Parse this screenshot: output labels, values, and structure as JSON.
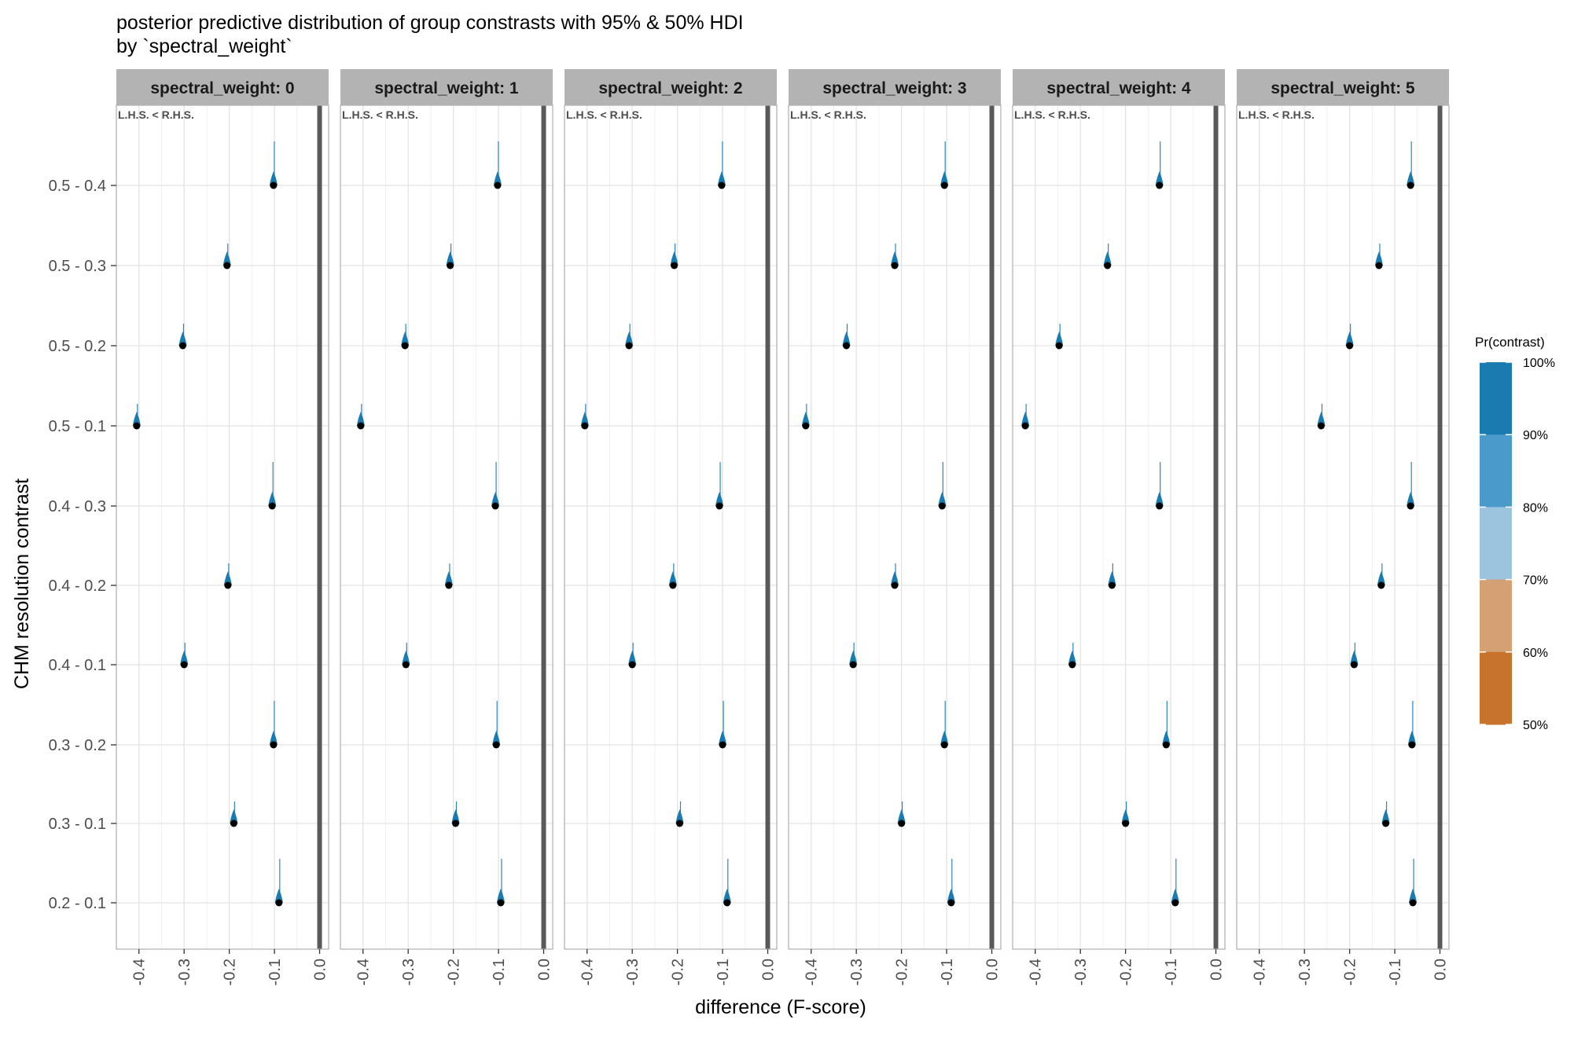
{
  "title_line1": "posterior predictive distribution of group constrasts with 95% & 50% HDI",
  "title_line2": "by `spectral_weight`",
  "chart_data": {
    "type": "interval",
    "xlabel": "difference (F-score)",
    "ylabel": "CHM resolution contrast",
    "xlim": [
      -0.45,
      0.02
    ],
    "x_ticks": [
      -0.4,
      -0.3,
      -0.2,
      -0.1,
      0.0
    ],
    "x_tick_labels": [
      "-0.4",
      "-0.3",
      "-0.2",
      "-0.1",
      "0.0"
    ],
    "reference_line": 0.0,
    "grid": true,
    "annotation": "L.H.S. < R.H.S.",
    "categories": [
      "0.5 - 0.4",
      "0.5 - 0.3",
      "0.5 - 0.2",
      "0.5 - 0.1",
      "0.4 - 0.3",
      "0.4 - 0.2",
      "0.4 - 0.1",
      "0.3 - 0.2",
      "0.3 - 0.1",
      "0.2 - 0.1"
    ],
    "facets": [
      {
        "label": "spectral_weight: 0",
        "medians": [
          -0.102,
          -0.205,
          -0.303,
          -0.405,
          -0.105,
          -0.203,
          -0.3,
          -0.102,
          -0.19,
          -0.09
        ]
      },
      {
        "label": "spectral_weight: 1",
        "medians": [
          -0.102,
          -0.207,
          -0.307,
          -0.405,
          -0.107,
          -0.21,
          -0.305,
          -0.105,
          -0.195,
          -0.095
        ]
      },
      {
        "label": "spectral_weight: 2",
        "medians": [
          -0.102,
          -0.207,
          -0.307,
          -0.405,
          -0.107,
          -0.21,
          -0.3,
          -0.1,
          -0.195,
          -0.09
        ]
      },
      {
        "label": "spectral_weight: 3",
        "medians": [
          -0.105,
          -0.215,
          -0.322,
          -0.412,
          -0.11,
          -0.215,
          -0.307,
          -0.105,
          -0.2,
          -0.09
        ]
      },
      {
        "label": "spectral_weight: 4",
        "medians": [
          -0.125,
          -0.24,
          -0.347,
          -0.422,
          -0.125,
          -0.23,
          -0.318,
          -0.11,
          -0.2,
          -0.09
        ]
      },
      {
        "label": "spectral_weight: 5",
        "medians": [
          -0.065,
          -0.135,
          -0.2,
          -0.263,
          -0.065,
          -0.13,
          -0.19,
          -0.062,
          -0.12,
          -0.06
        ]
      }
    ],
    "legend": {
      "title": "Pr(contrast)",
      "position": "right",
      "levels": [
        "100%",
        "90%",
        "80%",
        "70%",
        "60%",
        "50%"
      ],
      "colors": [
        "#1a7bb0",
        "#4a9bcc",
        "#9cc4de",
        "#d4a074",
        "#c8732c"
      ]
    }
  }
}
